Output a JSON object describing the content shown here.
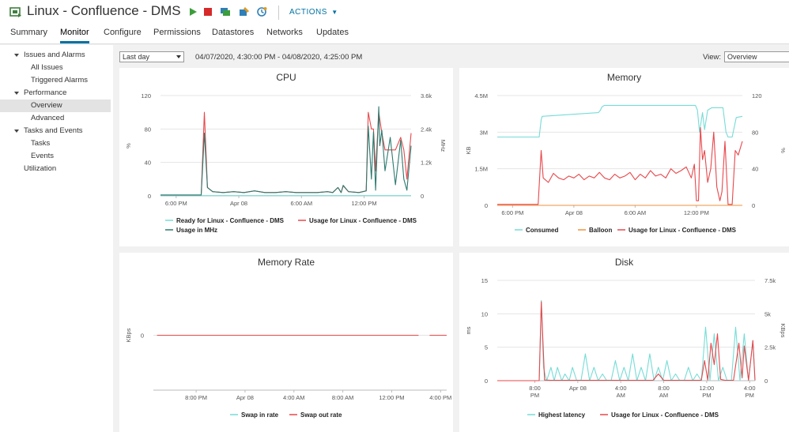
{
  "header": {
    "title": "Linux - Confluence - DMS",
    "actions_label": "ACTIONS",
    "tabs": [
      "Summary",
      "Monitor",
      "Configure",
      "Permissions",
      "Datastores",
      "Networks",
      "Updates"
    ],
    "active_tab": "Monitor",
    "toolbar_icons": [
      "power-on-icon",
      "power-off-icon",
      "console-icon",
      "migrate-icon",
      "snapshot-icon"
    ]
  },
  "sidebar": {
    "items": [
      {
        "label": "Issues and Alarms",
        "level": 0,
        "expanded": true
      },
      {
        "label": "All Issues",
        "level": 1
      },
      {
        "label": "Triggered Alarms",
        "level": 1
      },
      {
        "label": "Performance",
        "level": 0,
        "expanded": true
      },
      {
        "label": "Overview",
        "level": 1,
        "selected": true
      },
      {
        "label": "Advanced",
        "level": 1
      },
      {
        "label": "Tasks and Events",
        "level": 0,
        "expanded": true
      },
      {
        "label": "Tasks",
        "level": 1
      },
      {
        "label": "Events",
        "level": 1
      },
      {
        "label": "Utilization",
        "level": 0,
        "expanded": false
      }
    ]
  },
  "toolbar": {
    "time_range": "Last day",
    "range_text": "04/07/2020, 4:30:00 PM - 04/08/2020, 4:25:00 PM",
    "view_label": "View:",
    "view_value": "Overview"
  },
  "colors": {
    "cyan": "#76dcd6",
    "red": "#e8474b",
    "dark_teal": "#2c7a6f",
    "orange": "#f0923c",
    "accent": "#0072a3"
  },
  "chart_data": [
    {
      "id": "cpu",
      "type": "line",
      "title": "CPU",
      "ylabel": "%",
      "y2label": "MHz",
      "ylim": [
        0,
        120
      ],
      "y2lim": [
        0,
        3600
      ],
      "yticks": [
        "120",
        "80",
        "40",
        "0"
      ],
      "yticks_values": [
        120,
        80,
        40,
        0
      ],
      "y2ticks": [
        "3.6k",
        "2.4k",
        "1.2k",
        "0"
      ],
      "y2ticks_values": [
        3600,
        2400,
        1200,
        0
      ],
      "xlim": [
        0,
        24
      ],
      "xticks": [
        "6:00 PM",
        "Apr 08",
        "6:00 AM",
        "12:00 PM"
      ],
      "xticks_values": [
        1.5,
        7.5,
        13.5,
        19.5
      ],
      "series": [
        {
          "name": "Ready for Linux - Confluence - DMS",
          "color": "#76dcd6",
          "axis": "left",
          "x": [
            0,
            20.5,
            20.6,
            23,
            23.2,
            24
          ],
          "y": [
            0.3,
            0.3,
            0.3,
            0.3,
            0.3,
            0.3
          ]
        },
        {
          "name": "Usage for Linux - Confluence - DMS",
          "color": "#e8474b",
          "axis": "left",
          "x": [
            0,
            3.9,
            4.2,
            4.5,
            5,
            6,
            7,
            8,
            9,
            10,
            11,
            12,
            13,
            14,
            15,
            16,
            16.5,
            17,
            17.3,
            17.5,
            18,
            19,
            19.7,
            19.9,
            20.2,
            20.4,
            20.6,
            20.9,
            21.2,
            21.5,
            22,
            22.5,
            23,
            23.3,
            23.6,
            24
          ],
          "y": [
            1,
            1,
            100,
            10,
            5,
            4,
            5,
            4,
            6,
            4,
            4,
            5,
            4,
            4,
            4,
            5,
            4,
            10,
            4,
            12,
            5,
            4,
            6,
            100,
            80,
            80,
            30,
            100,
            75,
            55,
            55,
            55,
            70,
            55,
            20,
            75
          ]
        },
        {
          "name": "Usage in MHz",
          "color": "#2c7a6f",
          "axis": "right",
          "x": [
            0,
            3.9,
            4.2,
            4.5,
            5,
            6,
            7,
            8,
            9,
            10,
            11,
            12,
            13,
            14,
            15,
            16,
            16.5,
            17,
            17.3,
            17.5,
            18,
            19,
            19.7,
            19.9,
            20.2,
            20.4,
            20.6,
            20.9,
            21,
            21.2,
            21.5,
            22,
            22.5,
            23,
            23.3,
            23.6,
            24
          ],
          "y": [
            30,
            30,
            2250,
            300,
            150,
            120,
            150,
            120,
            180,
            120,
            120,
            150,
            120,
            120,
            120,
            150,
            120,
            300,
            120,
            380,
            150,
            120,
            180,
            2500,
            600,
            2300,
            200,
            3200,
            1800,
            2350,
            900,
            2100,
            400,
            2000,
            600,
            200,
            1800
          ]
        }
      ]
    },
    {
      "id": "memory",
      "type": "line",
      "title": "Memory",
      "ylabel": "KB",
      "y2label": "%",
      "ylim": [
        0,
        4500000
      ],
      "y2lim": [
        0,
        120
      ],
      "yticks": [
        "4.5M",
        "3M",
        "1.5M",
        "0"
      ],
      "yticks_values": [
        4500000,
        3000000,
        1500000,
        0
      ],
      "y2ticks": [
        "120",
        "80",
        "40",
        "0"
      ],
      "y2ticks_values": [
        120,
        80,
        40,
        0
      ],
      "xlim": [
        0,
        24
      ],
      "xticks": [
        "6:00 PM",
        "Apr 08",
        "6:00 AM",
        "12:00 PM"
      ],
      "xticks_values": [
        1.5,
        7.5,
        13.5,
        19.5
      ],
      "series": [
        {
          "name": "Consumed",
          "color": "#76dcd6",
          "axis": "left",
          "x": [
            0,
            4.1,
            4.3,
            4.4,
            9.9,
            10.1,
            10.2,
            10.3,
            10.5,
            19.4,
            19.6,
            19.8,
            20.1,
            20.3,
            20.6,
            21,
            22.1,
            22.4,
            22.6,
            23,
            23.4,
            24
          ],
          "y": [
            2800000,
            2800000,
            3500000,
            3650000,
            3800000,
            3900000,
            4000000,
            4050000,
            4100000,
            4100000,
            3900000,
            3000000,
            3800000,
            3100000,
            3900000,
            4000000,
            4000000,
            3000000,
            2800000,
            2800000,
            3600000,
            3650000
          ]
        },
        {
          "name": "Balloon",
          "color": "#f0923c",
          "axis": "left",
          "x": [
            0,
            24
          ],
          "y": [
            0,
            0
          ]
        },
        {
          "name": "Usage for Linux - Confluence - DMS",
          "color": "#e8474b",
          "axis": "right",
          "x": [
            0,
            4,
            4.3,
            4.5,
            5,
            5.5,
            6,
            6.5,
            7,
            7.5,
            8,
            8.5,
            9,
            9.5,
            10,
            10.5,
            11,
            11.5,
            12,
            12.5,
            13,
            13.5,
            14,
            14.5,
            15,
            15.5,
            16,
            16.5,
            17,
            17.5,
            18,
            18.5,
            19,
            19.3,
            19.5,
            19.7,
            19.9,
            20.1,
            20.3,
            20.6,
            20.9,
            21.2,
            21.5,
            21.8,
            22,
            22.3,
            22.6,
            23,
            23.3,
            23.6,
            24
          ],
          "y": [
            1,
            1,
            60,
            30,
            25,
            35,
            30,
            28,
            32,
            30,
            34,
            28,
            32,
            30,
            36,
            30,
            28,
            34,
            30,
            32,
            36,
            28,
            34,
            30,
            38,
            32,
            34,
            30,
            40,
            35,
            38,
            42,
            30,
            45,
            5,
            5,
            85,
            50,
            60,
            25,
            40,
            80,
            20,
            5,
            15,
            70,
            1,
            1,
            60,
            55,
            70
          ]
        }
      ]
    },
    {
      "id": "memory-rate",
      "type": "line",
      "title": "Memory Rate",
      "ylabel": "KBps",
      "yticks": [
        "0"
      ],
      "yticks_values": [
        0
      ],
      "ylim": [
        -1,
        1
      ],
      "xlim": [
        0,
        24
      ],
      "xticks": [
        "8:00 PM",
        "Apr 08",
        "4:00 AM",
        "8:00 AM",
        "12:00 PM",
        "4:00 PM"
      ],
      "xticks_values": [
        3.5,
        7.5,
        11.5,
        15.5,
        19.5,
        23.5
      ],
      "series": [
        {
          "name": "Swap in rate",
          "color": "#76dcd6",
          "axis": "left",
          "x": [
            0.3,
            21.7
          ],
          "y": [
            0,
            0
          ]
        },
        {
          "name": "Swap out rate",
          "color": "#e8474b",
          "axis": "left",
          "x": [
            0.3,
            21.7,
            null,
            22.6,
            24
          ],
          "y": [
            0,
            0,
            null,
            0,
            0
          ]
        }
      ]
    },
    {
      "id": "disk",
      "type": "line",
      "title": "Disk",
      "ylabel": "ms",
      "y2label": "KBps",
      "ylim": [
        0,
        15
      ],
      "y2lim": [
        0,
        7500
      ],
      "yticks": [
        "15",
        "10",
        "5",
        "0"
      ],
      "yticks_values": [
        15,
        10,
        5,
        0
      ],
      "y2ticks": [
        "7.5k",
        "5k",
        "2.5k",
        "0"
      ],
      "y2ticks_values": [
        7500,
        5000,
        2500,
        0
      ],
      "xlim": [
        0,
        24
      ],
      "xticks": [
        "8:00 PM",
        "Apr 08",
        "4:00 AM",
        "8:00 AM",
        "12:00 PM",
        "4:00 PM"
      ],
      "xticks_values": [
        3.5,
        7.5,
        11.5,
        15.5,
        19.5,
        23.5
      ],
      "series": [
        {
          "name": "Highest latency",
          "color": "#76dcd6",
          "axis": "left",
          "x": [
            0,
            3.9,
            4.1,
            4.3,
            4.6,
            5,
            5.3,
            5.6,
            6,
            6.3,
            6.7,
            7,
            7.4,
            7.8,
            8.2,
            8.6,
            9,
            9.4,
            9.8,
            10.2,
            10.6,
            11,
            11.4,
            11.8,
            12.2,
            12.6,
            13,
            13.4,
            13.8,
            14.2,
            14.6,
            15,
            15.4,
            15.8,
            16.2,
            16.6,
            17,
            17.4,
            17.8,
            18.2,
            18.6,
            19,
            19.4,
            19.8,
            20.2,
            20.6,
            21,
            21.4,
            21.8,
            22.2,
            22.6,
            23,
            23.4,
            23.8,
            24
          ],
          "y": [
            0,
            0,
            12,
            2,
            0,
            2,
            0,
            2,
            0,
            1,
            0,
            2,
            0,
            0,
            4,
            0,
            2,
            0,
            1,
            0,
            0,
            3,
            0,
            2,
            0,
            4,
            0,
            2,
            0,
            4,
            0,
            2,
            0,
            3,
            0,
            1,
            0,
            0,
            2,
            0,
            1,
            0,
            8,
            0,
            7,
            0,
            2,
            0,
            0,
            8,
            0,
            7,
            0,
            6,
            0
          ]
        },
        {
          "name": "Usage for Linux - Confluence - DMS",
          "color": "#e8474b",
          "axis": "right",
          "x": [
            0,
            3.9,
            4.1,
            4.4,
            5,
            8,
            10,
            13,
            14.5,
            15,
            15.5,
            17,
            19,
            19.3,
            19.6,
            19.9,
            20.2,
            20.5,
            20.8,
            21.2,
            22,
            22.5,
            22.8,
            23,
            23.4,
            23.8,
            24
          ],
          "y": [
            0,
            0,
            5900,
            50,
            30,
            30,
            30,
            30,
            30,
            500,
            30,
            30,
            30,
            1500,
            50,
            2800,
            1200,
            3500,
            100,
            30,
            30,
            2800,
            200,
            2600,
            30,
            3000,
            30
          ]
        }
      ]
    }
  ]
}
